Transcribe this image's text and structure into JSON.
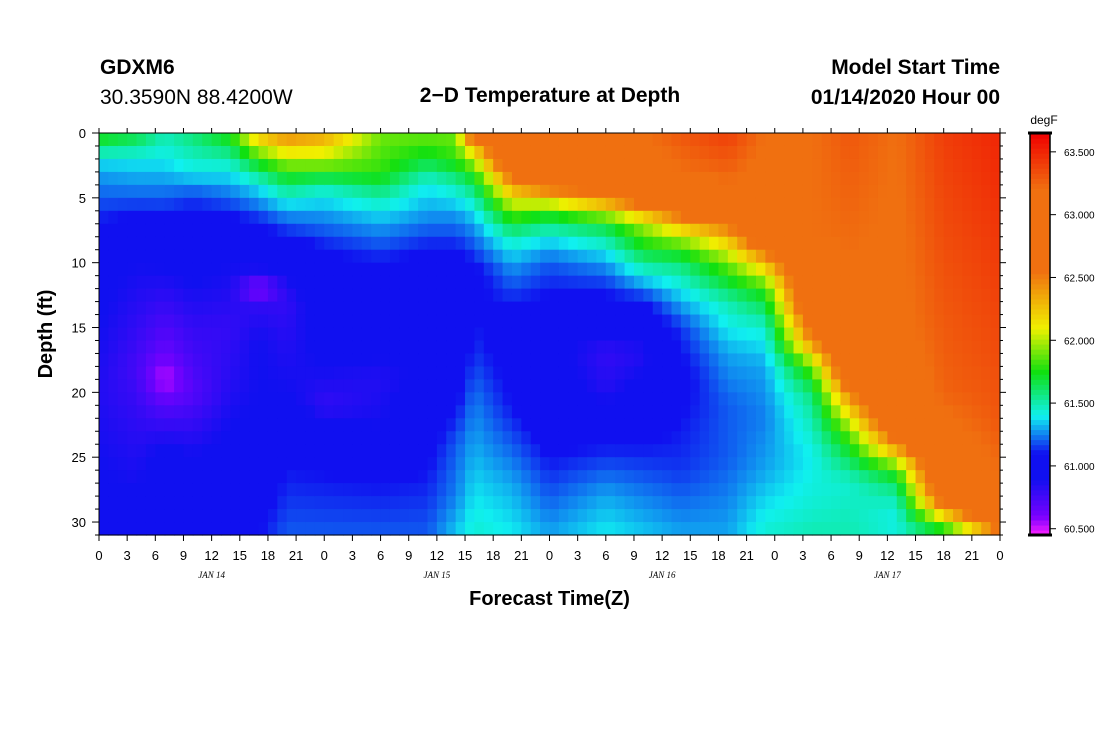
{
  "header": {
    "station": "GDXM6",
    "coords": "30.3590N 88.4200W",
    "title": "2−D Temperature at Depth",
    "start_label": "Model Start Time",
    "start_time": "01/14/2020 Hour 00"
  },
  "chart_data": {
    "type": "heatmap",
    "title": "2−D Temperature at Depth",
    "xlabel": "Forecast Time(Z)",
    "ylabel": "Depth (ft)",
    "colorbar_unit": "degF",
    "x_hours": [
      0,
      96
    ],
    "x_tick_labels": [
      "0",
      "3",
      "6",
      "9",
      "12",
      "15",
      "18",
      "21",
      "0",
      "3",
      "6",
      "9",
      "12",
      "15",
      "18",
      "21",
      "0",
      "3",
      "6",
      "9",
      "12",
      "15",
      "18",
      "21",
      "0",
      "3",
      "6",
      "9",
      "12",
      "15",
      "18",
      "21",
      "0"
    ],
    "day_labels": [
      {
        "hour": 12,
        "label": "JAN 14"
      },
      {
        "hour": 36,
        "label": "JAN 15"
      },
      {
        "hour": 60,
        "label": "JAN 16"
      },
      {
        "hour": 84,
        "label": "JAN 17"
      }
    ],
    "ylim": [
      31,
      0
    ],
    "y_ticks": [
      0,
      5,
      10,
      15,
      20,
      25,
      30
    ],
    "colorbar_ticks": [
      "60.500",
      "61.000",
      "61.500",
      "62.000",
      "62.500",
      "63.000",
      "63.500"
    ],
    "colorbar_range": [
      60.45,
      63.65
    ],
    "colors": {
      "violet": "#7a00ff",
      "magenta": "#ff20ff",
      "blue": "#1010f0",
      "cyan": "#10f0f0",
      "green": "#10e010",
      "yellow": "#f0f000",
      "orange": "#f07010",
      "red": "#f00000"
    },
    "depth_profiles": [
      {
        "hour": 0,
        "depths": [
          0,
          2,
          3,
          5,
          7,
          10,
          20,
          31
        ],
        "temps": [
          61.8,
          61.4,
          61.3,
          61.2,
          61.1,
          60.95,
          60.85,
          60.95
        ]
      },
      {
        "hour": 4,
        "depths": [
          0,
          2,
          5,
          7,
          10,
          18,
          31
        ],
        "temps": [
          61.7,
          61.4,
          61.2,
          61.05,
          60.9,
          60.75,
          60.95
        ]
      },
      {
        "hour": 7,
        "depths": [
          0,
          2,
          5,
          8,
          13,
          17,
          19,
          21,
          25,
          31
        ],
        "temps": [
          61.5,
          61.4,
          61.2,
          61.0,
          60.8,
          60.65,
          60.5,
          60.7,
          60.95,
          61.0
        ]
      },
      {
        "hour": 10,
        "depths": [
          0,
          3,
          5,
          10,
          15,
          20,
          25,
          31
        ],
        "temps": [
          61.6,
          61.4,
          61.15,
          60.95,
          60.8,
          60.7,
          60.9,
          61.0
        ]
      },
      {
        "hour": 14,
        "depths": [
          0,
          2,
          4,
          7,
          10,
          15,
          20,
          25,
          31
        ],
        "temps": [
          61.8,
          61.5,
          61.3,
          61.05,
          60.9,
          60.8,
          60.85,
          60.95,
          61.05
        ]
      },
      {
        "hour": 17,
        "depths": [
          0,
          2,
          4,
          7,
          11,
          12,
          13,
          16,
          20,
          25,
          31
        ],
        "temps": [
          62.3,
          61.8,
          61.4,
          61.1,
          60.85,
          60.5,
          60.8,
          60.9,
          60.9,
          60.95,
          61.1
        ]
      },
      {
        "hour": 20,
        "depths": [
          0,
          2,
          4,
          6,
          9,
          13,
          20,
          23,
          31
        ],
        "temps": [
          62.5,
          62.0,
          61.6,
          61.3,
          61.0,
          60.8,
          60.9,
          61.05,
          61.2
        ]
      },
      {
        "hour": 24,
        "depths": [
          0,
          1,
          3,
          4,
          6,
          9,
          13,
          18,
          21,
          24,
          31
        ],
        "temps": [
          62.4,
          62.2,
          61.8,
          61.5,
          61.3,
          61.1,
          61.0,
          60.9,
          60.8,
          61.05,
          61.2
        ]
      },
      {
        "hour": 30,
        "depths": [
          0,
          3,
          5,
          7,
          10,
          14,
          19,
          23,
          27,
          31
        ],
        "temps": [
          61.9,
          61.8,
          61.5,
          61.3,
          61.1,
          61.0,
          60.85,
          60.9,
          61.1,
          61.2
        ]
      },
      {
        "hour": 35,
        "depths": [
          0,
          2,
          4,
          6,
          9,
          13,
          17,
          22,
          26,
          31
        ],
        "temps": [
          61.9,
          61.7,
          61.4,
          61.3,
          61.1,
          60.95,
          60.9,
          61.0,
          61.1,
          61.2
        ]
      },
      {
        "hour": 38,
        "depths": [
          0,
          2,
          4,
          6,
          9,
          11,
          15,
          20,
          24,
          28,
          31
        ],
        "temps": [
          61.9,
          61.8,
          61.5,
          61.3,
          61.1,
          60.95,
          60.9,
          61.05,
          61.2,
          61.25,
          61.35
        ]
      },
      {
        "hour": 40,
        "depths": [
          0,
          1,
          3,
          5,
          7,
          11,
          17,
          21,
          24,
          31
        ],
        "temps": [
          63.0,
          62.3,
          61.8,
          61.5,
          61.3,
          61.05,
          61.15,
          61.25,
          61.3,
          61.45
        ]
      },
      {
        "hour": 44,
        "depths": [
          0,
          2,
          4,
          6,
          8,
          10,
          15,
          21,
          27,
          31
        ],
        "temps": [
          63.1,
          63.0,
          62.4,
          61.9,
          61.5,
          61.3,
          61.0,
          61.1,
          61.3,
          61.4
        ]
      },
      {
        "hour": 48,
        "depths": [
          0,
          2,
          4,
          6,
          8,
          10,
          16,
          22,
          28,
          31
        ],
        "temps": [
          63.1,
          63.0,
          62.7,
          61.8,
          61.4,
          61.2,
          60.95,
          61.0,
          61.2,
          61.3
        ]
      },
      {
        "hour": 54,
        "depths": [
          0,
          2,
          5,
          7,
          9,
          11,
          14,
          17,
          20,
          24,
          28,
          31
        ],
        "temps": [
          63.2,
          63.1,
          62.5,
          61.7,
          61.4,
          61.2,
          61.0,
          60.8,
          60.85,
          61.1,
          61.3,
          61.4
        ]
      },
      {
        "hour": 58,
        "depths": [
          0,
          3,
          5,
          7,
          9,
          11,
          13,
          17,
          20,
          24,
          28,
          31
        ],
        "temps": [
          63.2,
          63.1,
          62.8,
          62.0,
          61.7,
          61.4,
          61.1,
          60.85,
          60.95,
          61.1,
          61.25,
          61.35
        ]
      },
      {
        "hour": 62,
        "depths": [
          0,
          3,
          6,
          8,
          10,
          12,
          15,
          19,
          22,
          26,
          31
        ],
        "temps": [
          63.3,
          63.2,
          62.7,
          62.0,
          61.6,
          61.4,
          61.15,
          61.05,
          61.1,
          61.15,
          61.3
        ]
      },
      {
        "hour": 67,
        "depths": [
          0,
          4,
          6,
          8,
          10,
          13,
          17,
          21,
          25,
          31
        ],
        "temps": [
          63.4,
          63.2,
          62.9,
          62.3,
          61.9,
          61.5,
          61.3,
          61.2,
          61.2,
          61.3
        ]
      },
      {
        "hour": 71,
        "depths": [
          0,
          5,
          8,
          10,
          12,
          15,
          18,
          22,
          26,
          31
        ],
        "temps": [
          63.2,
          63.1,
          62.9,
          62.3,
          61.8,
          61.45,
          61.3,
          61.25,
          61.3,
          61.45
        ]
      },
      {
        "hour": 76,
        "depths": [
          0,
          8,
          13,
          16,
          18,
          20,
          22,
          25,
          29,
          31
        ],
        "temps": [
          63.2,
          63.2,
          63.0,
          62.5,
          61.9,
          61.6,
          61.5,
          61.4,
          61.45,
          61.5
        ]
      },
      {
        "hour": 80,
        "depths": [
          0,
          10,
          18,
          21,
          23,
          25,
          27,
          31
        ],
        "temps": [
          63.3,
          63.2,
          63.0,
          62.3,
          61.9,
          61.65,
          61.45,
          61.5
        ]
      },
      {
        "hour": 85,
        "depths": [
          0,
          15,
          22,
          24,
          26,
          28,
          30,
          31
        ],
        "temps": [
          63.2,
          63.15,
          63.0,
          62.5,
          61.8,
          61.5,
          61.4,
          61.45
        ]
      },
      {
        "hour": 90,
        "depths": [
          0,
          20,
          27,
          29,
          30,
          31
        ],
        "temps": [
          63.4,
          63.25,
          63.0,
          62.5,
          61.9,
          61.7
        ]
      },
      {
        "hour": 96,
        "depths": [
          0,
          22,
          29,
          30.5,
          31
        ],
        "temps": [
          63.5,
          63.3,
          63.15,
          62.6,
          62.2
        ]
      }
    ]
  }
}
